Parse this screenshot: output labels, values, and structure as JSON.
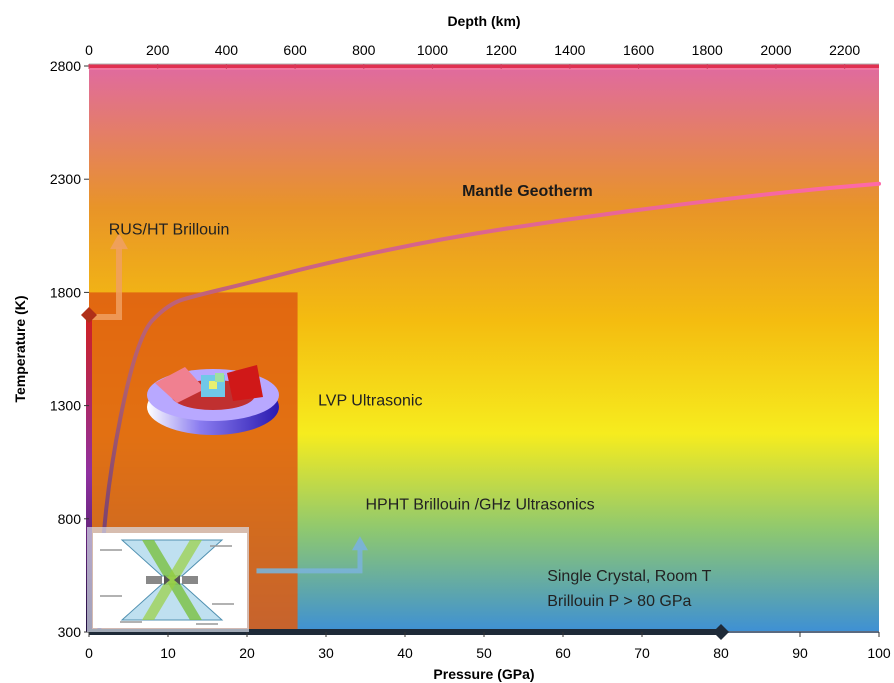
{
  "chart_data": {
    "type": "line",
    "xlabel": "Pressure (GPa)",
    "ylabel": "Temperature (K)",
    "x2label": "Depth (km)",
    "xlim": [
      0,
      100
    ],
    "ylim": [
      300,
      2800
    ],
    "x2lim": [
      0,
      2300
    ],
    "xticks": [
      "0",
      "10",
      "20",
      "30",
      "40",
      "50",
      "60",
      "70",
      "80",
      "90",
      "100"
    ],
    "yticks": [
      "300",
      "800",
      "1300",
      "1800",
      "2300",
      "2800"
    ],
    "x2ticks": [
      "0",
      "200",
      "400",
      "600",
      "800",
      "1000",
      "1200",
      "1400",
      "1600",
      "1800",
      "2000",
      "2200"
    ],
    "background": {
      "type": "gradient",
      "colors": [
        "#e06aa0",
        "#e89428",
        "#f4bc10",
        "#f6ec1e",
        "#8ec870",
        "#3e90d4"
      ]
    },
    "series": [
      {
        "name": "Mantle Geotherm",
        "color": "#ff69a8",
        "x": [
          1.3,
          2,
          6,
          10,
          14,
          20,
          30,
          45,
          60,
          75,
          90,
          100
        ],
        "y": [
          300,
          900,
          1600,
          1750,
          1790,
          1840,
          1930,
          2040,
          2120,
          2190,
          2250,
          2280
        ]
      }
    ],
    "regions": [
      {
        "name": "LVP Ultrasonic",
        "x": [
          0,
          26.4
        ],
        "y": [
          300,
          1800
        ],
        "color": "#de5a10",
        "opacity": 0.85
      }
    ],
    "annotations": [
      {
        "text": "Mantle Geotherm",
        "x": 55.5,
        "y": 2225,
        "bold": true
      },
      {
        "text": "RUS/HT Brillouin",
        "x": 2.5,
        "y": 2055
      },
      {
        "text": "LVP Ultrasonic",
        "x": 29,
        "y": 1300
      },
      {
        "text": "HPHT Brillouin /GHz Ultrasonics",
        "x": 35,
        "y": 840
      },
      {
        "text": "Single Crystal, Room T",
        "x": 58,
        "y": 525
      },
      {
        "text": "Brillouin  P > 80 GPa",
        "x": 58,
        "y": 415
      }
    ],
    "markers": [
      {
        "x": 0,
        "y": 1700,
        "color": "#b03018"
      },
      {
        "x": 80,
        "y": 300,
        "color": "#1e2a38"
      }
    ],
    "arrows": [
      {
        "name": "rus-arrow",
        "color": "#f0a060"
      },
      {
        "name": "hpht-arrow",
        "color": "#7ab2d8"
      }
    ],
    "inset_images": [
      "anvil-cell-image",
      "diamond-anvil-cell-diagram"
    ]
  }
}
